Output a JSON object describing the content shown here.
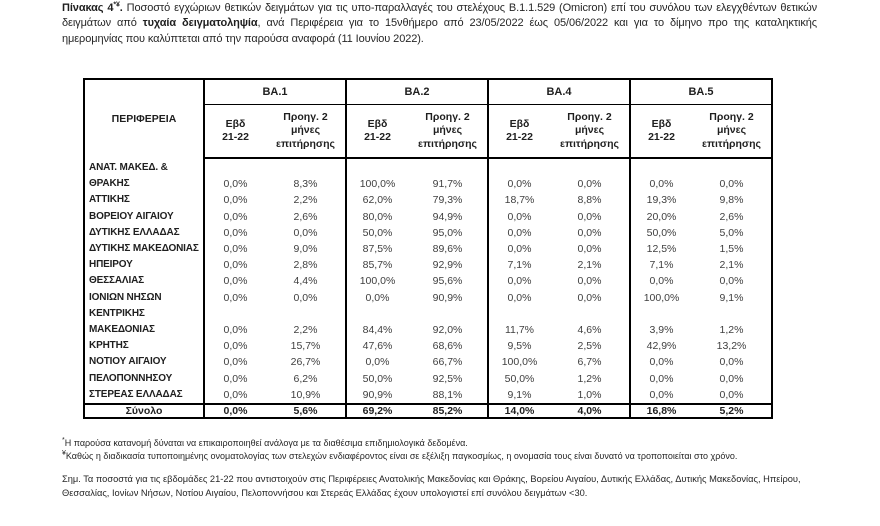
{
  "caption": {
    "prefix_bold": "Πίνακας 4",
    "footnote_marks": "*¥",
    "prefix_period": ". ",
    "text_before_bold": "Ποσοστό εγχώριων θετικών δειγμάτων για τις υπο-παραλλαγές του στελέχους B.1.1.529 (Omicron) επί του συνόλου των ελεγχθέντων θετικών δειγμάτων από ",
    "bold_phrase": "τυχαία δειγματοληψία",
    "text_after_bold": ", ανά Περιφέρεια για το 15νθήμερο από 23/05/2022 έως 05/06/2022 και για το δίμηνο προ της καταληκτικής ημερομηνίας που καλύπτεται από την παρούσα αναφορά (11 Ιουνίου 2022)."
  },
  "table": {
    "region_header": "ΠΕΡΙΦΕΡΕΙΑ",
    "variant_groups": [
      "BA.1",
      "BA.2",
      "BA.4",
      "BA.5"
    ],
    "sub_headers": [
      "Εβδ\n21-22",
      "Προηγ. 2\nμήνες\nεπιτήρησης"
    ],
    "rows": [
      {
        "region": "ΑΝΑΤ. ΜΑΚΕΔ. &\nΘΡΑΚΗΣ",
        "values": [
          "0,0%",
          "8,3%",
          "100,0%",
          "91,7%",
          "0,0%",
          "0,0%",
          "0,0%",
          "0,0%"
        ]
      },
      {
        "region": "ΑΤΤΙΚΗΣ",
        "values": [
          "0,0%",
          "2,2%",
          "62,0%",
          "79,3%",
          "18,7%",
          "8,8%",
          "19,3%",
          "9,8%"
        ]
      },
      {
        "region": "ΒΟΡΕΙΟΥ ΑΙΓΑΙΟΥ",
        "values": [
          "0,0%",
          "2,6%",
          "80,0%",
          "94,9%",
          "0,0%",
          "0,0%",
          "20,0%",
          "2,6%"
        ]
      },
      {
        "region": "ΔΥΤΙΚΗΣ ΕΛΛΑΔΑΣ",
        "values": [
          "0,0%",
          "0,0%",
          "50,0%",
          "95,0%",
          "0,0%",
          "0,0%",
          "50,0%",
          "5,0%"
        ]
      },
      {
        "region": "ΔΥΤΙΚΗΣ ΜΑΚΕΔΟΝΙΑΣ",
        "values": [
          "0,0%",
          "9,0%",
          "87,5%",
          "89,6%",
          "0,0%",
          "0,0%",
          "12,5%",
          "1,5%"
        ]
      },
      {
        "region": "ΗΠΕΙΡΟΥ",
        "values": [
          "0,0%",
          "2,8%",
          "85,7%",
          "92,9%",
          "7,1%",
          "2,1%",
          "7,1%",
          "2,1%"
        ]
      },
      {
        "region": "ΘΕΣΣΑΛΙΑΣ",
        "values": [
          "0,0%",
          "4,4%",
          "100,0%",
          "95,6%",
          "0,0%",
          "0,0%",
          "0,0%",
          "0,0%"
        ]
      },
      {
        "region": "ΙΟΝΙΩΝ ΝΗΣΩΝ",
        "values": [
          "0,0%",
          "0,0%",
          "0,0%",
          "90,9%",
          "0,0%",
          "0,0%",
          "100,0%",
          "9,1%"
        ]
      },
      {
        "region": "ΚΕΝΤΡΙΚΗΣ\nΜΑΚΕΔΟΝΙΑΣ",
        "values": [
          "0,0%",
          "2,2%",
          "84,4%",
          "92,0%",
          "11,7%",
          "4,6%",
          "3,9%",
          "1,2%"
        ]
      },
      {
        "region": "ΚΡΗΤΗΣ",
        "values": [
          "0,0%",
          "15,7%",
          "47,6%",
          "68,6%",
          "9,5%",
          "2,5%",
          "42,9%",
          "13,2%"
        ]
      },
      {
        "region": "ΝΟΤΙΟΥ ΑΙΓΑΙΟΥ",
        "values": [
          "0,0%",
          "26,7%",
          "0,0%",
          "66,7%",
          "100,0%",
          "6,7%",
          "0,0%",
          "0,0%"
        ]
      },
      {
        "region": "ΠΕΛΟΠΟΝΝΗΣΟΥ",
        "values": [
          "0,0%",
          "6,2%",
          "50,0%",
          "92,5%",
          "50,0%",
          "1,2%",
          "0,0%",
          "0,0%"
        ]
      },
      {
        "region": "ΣΤΕΡΕΑΣ ΕΛΛΑΔΑΣ",
        "values": [
          "0,0%",
          "10,9%",
          "90,9%",
          "88,1%",
          "9,1%",
          "1,0%",
          "0,0%",
          "0,0%"
        ]
      }
    ],
    "total_row": {
      "label": "Σύνολο",
      "values": [
        "0,0%",
        "5,6%",
        "69,2%",
        "85,2%",
        "14,0%",
        "4,0%",
        "16,8%",
        "5,2%"
      ]
    }
  },
  "footnotes": [
    {
      "marker": "*",
      "text": "Η παρούσα κατανομή δύναται να επικαιροποιηθεί ανάλογα με τα διαθέσιμα επιδημιολογικά δεδομένα."
    },
    {
      "marker": "¥",
      "text": "Καθώς η διαδικασία τυποποιημένης ονοματολογίας των στελεχών ενδιαφέροντος είναι σε εξέλιξη παγκοσμίως, η ονομασία τους είναι δυνατό να τροποποιείται στο χρόνο."
    }
  ],
  "note": "Σημ. Τα ποσοστά για τις εβδομάδες 21-22 που αντιστοιχούν στις Περιφέρειες Ανατολικής Μακεδονίας και Θράκης, Βορείου Αιγαίου, Δυτικής Ελλάδας, Δυτικής Μακεδονίας, Ηπείρου, Θεσσαλίας, Ιονίων Νήσων, Νοτίου Αιγαίου, Πελοποννήσου και Στερεάς Ελλάδας έχουν υπολογιστεί επί συνόλου δειγμάτων <30.",
  "colors": {
    "text": "#262626",
    "values_text": "#3f3f3f",
    "border": "#000000",
    "background": "#ffffff"
  }
}
